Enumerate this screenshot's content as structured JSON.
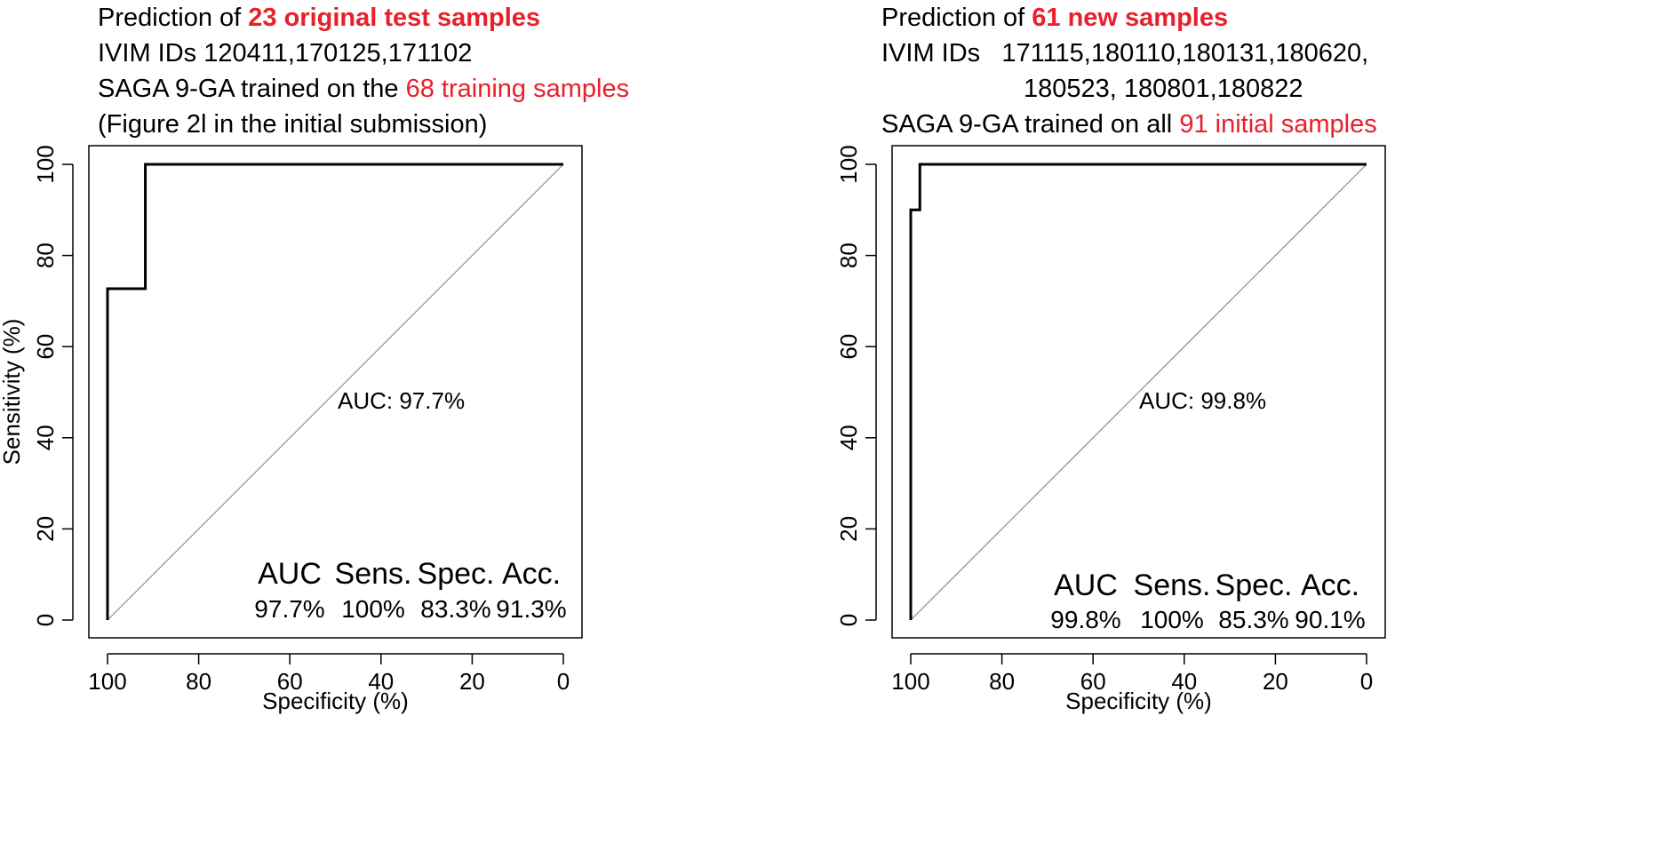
{
  "colors": {
    "highlight": "#e8202a",
    "curve": "#000000",
    "diagonal": "#a0a0a0",
    "frame": "#000000"
  },
  "chart_data": [
    {
      "type": "line",
      "title": {
        "line1_prefix": "Prediction of ",
        "line1_highlight": "23 original test samples",
        "line2": "IVIM IDs 120411,170125,171102",
        "line3_prefix": "SAGA 9-GA trained on the ",
        "line3_highlight": "68 training samples",
        "line4": "(Figure 2l in the initial submission)"
      },
      "xlabel": "Specificity (%)",
      "ylabel": "Sensitivity (%)",
      "xlim": [
        100,
        0
      ],
      "ylim": [
        0,
        100
      ],
      "xticks": [
        "100",
        "80",
        "60",
        "40",
        "20",
        "0"
      ],
      "yticks": [
        "0",
        "20",
        "40",
        "60",
        "80",
        "100"
      ],
      "x_reversed": true,
      "grid": false,
      "series": [
        {
          "x": [
            100,
            100,
            91.7,
            91.7,
            0
          ],
          "y": [
            0,
            72.7,
            72.7,
            100,
            100
          ]
        }
      ],
      "reference_line": {
        "x": [
          100,
          0
        ],
        "y": [
          0,
          100
        ]
      },
      "annotation": {
        "label": "AUC:",
        "value": "97.7%",
        "at": {
          "x": 50,
          "y": 48
        }
      },
      "stats": {
        "headers": [
          "AUC",
          "Sens.",
          "Spec.",
          "Acc."
        ],
        "values": [
          "97.7%",
          "100%",
          "83.3%",
          "91.3%"
        ]
      }
    },
    {
      "type": "line",
      "title": {
        "line1_prefix": "Prediction of ",
        "line1_highlight": "61 new samples",
        "line2": "IVIM IDs   171115,180110,180131,180620,",
        "line3": "180523, 180801,180822",
        "line4_prefix": "SAGA 9-GA trained on all ",
        "line4_highlight": "91 initial samples"
      },
      "xlabel": "Specificity (%)",
      "ylabel": "Sensitivity (%)",
      "xlim": [
        100,
        0
      ],
      "ylim": [
        0,
        100
      ],
      "xticks": [
        "100",
        "80",
        "60",
        "40",
        "20",
        "0"
      ],
      "yticks": [
        "0",
        "20",
        "40",
        "60",
        "80",
        "100"
      ],
      "x_reversed": true,
      "grid": false,
      "series": [
        {
          "x": [
            100,
            100,
            98,
            98,
            0
          ],
          "y": [
            0,
            90,
            90,
            100,
            100
          ]
        }
      ],
      "reference_line": {
        "x": [
          100,
          0
        ],
        "y": [
          0,
          100
        ]
      },
      "annotation": {
        "label": "AUC:",
        "value": "99.8%",
        "at": {
          "x": 50,
          "y": 48
        }
      },
      "stats": {
        "headers": [
          "AUC",
          "Sens.",
          "Spec.",
          "Acc."
        ],
        "values": [
          "99.8%",
          "100%",
          "85.3%",
          "90.1%"
        ]
      }
    }
  ]
}
